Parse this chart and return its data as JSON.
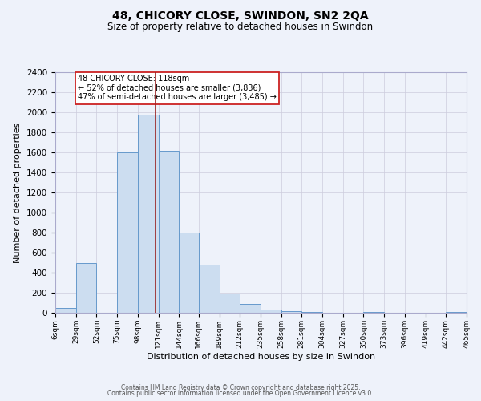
{
  "title": "48, CHICORY CLOSE, SWINDON, SN2 2QA",
  "subtitle": "Size of property relative to detached houses in Swindon",
  "xlabel": "Distribution of detached houses by size in Swindon",
  "ylabel": "Number of detached properties",
  "bar_color": "#ccddf0",
  "bar_edge_color": "#6699cc",
  "background_color": "#eef2fa",
  "grid_color": "#ccccdd",
  "annotation_line_color": "#992222",
  "annotation_box_edge_color": "#cc2222",
  "annotation_text": "48 CHICORY CLOSE: 118sqm\n← 52% of detached houses are smaller (3,836)\n47% of semi-detached houses are larger (3,485) →",
  "property_size": 118,
  "tick_labels": [
    "6sqm",
    "29sqm",
    "52sqm",
    "75sqm",
    "98sqm",
    "121sqm",
    "144sqm",
    "166sqm",
    "189sqm",
    "212sqm",
    "235sqm",
    "258sqm",
    "281sqm",
    "304sqm",
    "327sqm",
    "350sqm",
    "373sqm",
    "396sqm",
    "419sqm",
    "442sqm",
    "465sqm"
  ],
  "bin_edges": [
    6,
    29,
    52,
    75,
    98,
    121,
    144,
    166,
    189,
    212,
    235,
    258,
    281,
    304,
    327,
    350,
    373,
    396,
    419,
    442,
    465
  ],
  "bar_heights": [
    50,
    500,
    0,
    1600,
    1980,
    1620,
    800,
    480,
    190,
    90,
    30,
    20,
    10,
    0,
    0,
    5,
    0,
    0,
    0,
    5
  ],
  "ylim": [
    0,
    2400
  ],
  "yticks": [
    0,
    200,
    400,
    600,
    800,
    1000,
    1200,
    1400,
    1600,
    1800,
    2000,
    2200,
    2400
  ],
  "footer_line1": "Contains HM Land Registry data © Crown copyright and database right 2025.",
  "footer_line2": "Contains public sector information licensed under the Open Government Licence v3.0."
}
